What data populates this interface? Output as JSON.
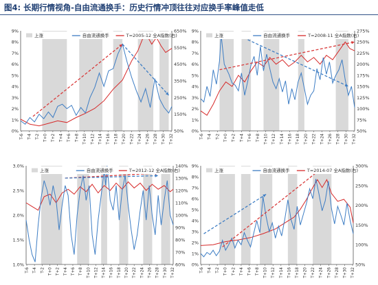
{
  "page": {
    "figure_tag": "图4:",
    "title": "长期行情视角-自由流通换手：历史行情冲顶往往对应换手率峰值走低"
  },
  "legend_common": {
    "shade_label": "上涨",
    "turnover_label": "自由流通换手"
  },
  "colors": {
    "shade": "#d9d9d9",
    "turnover": "#3d7dc4",
    "index": "#d62828",
    "trend_red": "#d93a3a",
    "trend_blue": "#3d7dc4",
    "axis": "#555555"
  },
  "chart_data": [
    {
      "type": "line",
      "index_label": "T=2005-12 全A指数(右)",
      "x_ticks": [
        "T-6",
        "T-4",
        "T-2",
        "T+0",
        "T+2",
        "T+4",
        "T+6",
        "T+8",
        "T+10",
        "T+12",
        "T+14",
        "T+16",
        "T+18",
        "T+20",
        "T+22",
        "T+24",
        "T+26",
        "T+28",
        "T+30",
        "T+32"
      ],
      "yleft": {
        "ticks": [
          "0%",
          "1%",
          "2%",
          "3%",
          "4%",
          "5%",
          "6%",
          "7%",
          "8%",
          "9%"
        ],
        "min": 0,
        "max": 9
      },
      "yright": {
        "ticks": [
          "50%",
          "150%",
          "250%",
          "350%",
          "450%",
          "550%",
          "650%"
        ],
        "min": 50,
        "max": 650
      },
      "shaded_ranges_x": [
        [
          7,
          15
        ],
        [
          19,
          26.5
        ],
        [
          30,
          33
        ],
        [
          38,
          43
        ],
        [
          45,
          48
        ]
      ],
      "turnover": [
        [
          0,
          0.9
        ],
        [
          1.5,
          0.6
        ],
        [
          3,
          1.2
        ],
        [
          4.5,
          0.8
        ],
        [
          6,
          1.5
        ],
        [
          7.5,
          1.1
        ],
        [
          9,
          1.7
        ],
        [
          10.5,
          1.2
        ],
        [
          12,
          2.2
        ],
        [
          13.5,
          2.4
        ],
        [
          15,
          2.0
        ],
        [
          16.5,
          2.3
        ],
        [
          18,
          1.4
        ],
        [
          19.5,
          2.1
        ],
        [
          21,
          1.6
        ],
        [
          22.5,
          3.0
        ],
        [
          24,
          3.9
        ],
        [
          25.5,
          5.2
        ],
        [
          27,
          4.0
        ],
        [
          28.5,
          5.4
        ],
        [
          30,
          5.6
        ],
        [
          31.5,
          6.9
        ],
        [
          33,
          7.8
        ],
        [
          34.5,
          6.2
        ],
        [
          36,
          4.8
        ],
        [
          37.5,
          3.6
        ],
        [
          39,
          2.6
        ],
        [
          40.5,
          3.8
        ],
        [
          42,
          2.1
        ],
        [
          43.5,
          4.7
        ],
        [
          45,
          2.9
        ],
        [
          46.5,
          2.1
        ],
        [
          48,
          1.6
        ],
        [
          49,
          2.2
        ]
      ],
      "index": [
        [
          0,
          120
        ],
        [
          3,
          90
        ],
        [
          6,
          80
        ],
        [
          9,
          95
        ],
        [
          12,
          110
        ],
        [
          15,
          100
        ],
        [
          18,
          130
        ],
        [
          21,
          155
        ],
        [
          24,
          185
        ],
        [
          27,
          230
        ],
        [
          30,
          300
        ],
        [
          33,
          355
        ],
        [
          36,
          470
        ],
        [
          38,
          530
        ],
        [
          39.5,
          600
        ],
        [
          41,
          620
        ],
        [
          42.5,
          570
        ],
        [
          44,
          610
        ],
        [
          45.5,
          560
        ],
        [
          47,
          520
        ],
        [
          49,
          545
        ]
      ],
      "trend_red": [
        [
          4,
          1.3
        ],
        [
          33,
          7.8
        ]
      ],
      "trend_blue": [
        [
          33,
          7.8
        ],
        [
          48,
          3.2
        ]
      ]
    },
    {
      "type": "line",
      "index_label": "T=2008-11 全A指数(右)",
      "x_ticks": [
        "T-6",
        "T-4",
        "T-2",
        "T+0",
        "T+2",
        "T+4",
        "T+6",
        "T+8",
        "T+10",
        "T+12",
        "T+14",
        "T+16",
        "T+18",
        "T+20",
        "T+22",
        "T+24",
        "T+26",
        "T+28",
        "T+30",
        "T+32"
      ],
      "yleft": {
        "ticks": [
          "0%",
          "1%",
          "2%",
          "3%",
          "4%",
          "5%",
          "6%",
          "7%",
          "8%",
          "9%"
        ],
        "min": 0,
        "max": 9
      },
      "yright": {
        "ticks": [
          "50%",
          "75%",
          "100%",
          "125%",
          "150%",
          "175%",
          "200%",
          "225%",
          "250%",
          "275%"
        ],
        "min": 50,
        "max": 275
      },
      "shaded_ranges_x": [
        [
          6,
          10.5
        ],
        [
          13,
          16
        ],
        [
          20,
          25
        ],
        [
          31,
          33
        ],
        [
          43,
          47
        ]
      ],
      "turnover": [
        [
          0,
          2.9
        ],
        [
          1,
          2.6
        ],
        [
          2,
          4.0
        ],
        [
          3,
          3.1
        ],
        [
          4,
          5.5
        ],
        [
          5,
          4.2
        ],
        [
          6,
          6.3
        ],
        [
          6.5,
          8.7
        ],
        [
          7.5,
          6.0
        ],
        [
          9,
          5.1
        ],
        [
          10,
          4.3
        ],
        [
          11,
          4.1
        ],
        [
          12,
          3.6
        ],
        [
          13,
          5.2
        ],
        [
          14,
          3.2
        ],
        [
          15,
          4.5
        ],
        [
          16,
          5.9
        ],
        [
          17,
          6.7
        ],
        [
          18,
          5.0
        ],
        [
          19,
          7.6
        ],
        [
          20,
          5.4
        ],
        [
          21,
          6.9
        ],
        [
          22,
          5.6
        ],
        [
          23,
          4.4
        ],
        [
          24,
          3.8
        ],
        [
          25,
          4.7
        ],
        [
          26,
          3.5
        ],
        [
          27,
          4.5
        ],
        [
          28,
          2.4
        ],
        [
          29,
          3.8
        ],
        [
          30,
          2.8
        ],
        [
          31,
          4.4
        ],
        [
          32,
          5.2
        ],
        [
          33,
          3.8
        ],
        [
          34,
          2.4
        ],
        [
          35,
          3.2
        ],
        [
          36,
          3.6
        ],
        [
          37,
          5.6
        ],
        [
          38,
          4.6
        ],
        [
          39,
          6.6
        ],
        [
          40,
          5.1
        ],
        [
          41,
          6.2
        ],
        [
          42,
          4.3
        ],
        [
          43,
          5.0
        ],
        [
          44,
          5.5
        ],
        [
          45,
          6.4
        ],
        [
          46,
          4.6
        ],
        [
          47,
          3.2
        ],
        [
          48,
          4.0
        ],
        [
          49,
          2.1
        ]
      ],
      "index": [
        [
          0,
          95
        ],
        [
          2,
          85
        ],
        [
          4,
          110
        ],
        [
          6,
          140
        ],
        [
          8,
          160
        ],
        [
          10,
          150
        ],
        [
          12,
          175
        ],
        [
          14,
          160
        ],
        [
          16,
          185
        ],
        [
          18,
          205
        ],
        [
          20,
          195
        ],
        [
          22,
          215
        ],
        [
          24,
          200
        ],
        [
          26,
          210
        ],
        [
          28,
          195
        ],
        [
          30,
          205
        ],
        [
          32,
          220
        ],
        [
          34,
          205
        ],
        [
          36,
          215
        ],
        [
          38,
          200
        ],
        [
          40,
          220
        ],
        [
          42,
          210
        ],
        [
          44,
          230
        ],
        [
          46,
          250
        ],
        [
          47.5,
          235
        ],
        [
          49,
          230
        ]
      ],
      "trend_red": [
        [
          6,
          5.5
        ],
        [
          49,
          8.0
        ]
      ],
      "trend_blue": [
        [
          15,
          8.2
        ],
        [
          47,
          4.0
        ]
      ]
    },
    {
      "type": "line",
      "index_label": "T=2012-12 全A指数(右)",
      "x_ticks": [
        "T-6",
        "T-4",
        "T-2",
        "T+0",
        "T+2",
        "T+4",
        "T+6",
        "T+8",
        "T+10",
        "T+12",
        "T+14",
        "T+16",
        "T+18",
        "T+20",
        "T+22",
        "T+24",
        "T+26",
        "T+28",
        "T+30",
        "T+32"
      ],
      "yleft": {
        "ticks": [
          "1.0%",
          "1.5%",
          "2.0%",
          "2.5%",
          "3.0%"
        ],
        "min": 1.0,
        "max": 3.0
      },
      "yright": {
        "ticks": [
          "60%",
          "70%",
          "80%",
          "90%",
          "100%",
          "110%",
          "120%",
          "130%",
          "140%"
        ],
        "min": 60,
        "max": 140
      },
      "shaded_ranges_x": [
        [
          5,
          12
        ],
        [
          17,
          21
        ],
        [
          25,
          27
        ],
        [
          31,
          34
        ],
        [
          39,
          42
        ],
        [
          45,
          48
        ]
      ],
      "turnover": [
        [
          0,
          1.9
        ],
        [
          1,
          1.5
        ],
        [
          2,
          1.2
        ],
        [
          3,
          1.05
        ],
        [
          4,
          1.8
        ],
        [
          5,
          2.35
        ],
        [
          6,
          2.7
        ],
        [
          7,
          2.5
        ],
        [
          8,
          2.2
        ],
        [
          9,
          2.6
        ],
        [
          10,
          2.3
        ],
        [
          11,
          1.7
        ],
        [
          12,
          2.2
        ],
        [
          13,
          2.6
        ],
        [
          14,
          2.4
        ],
        [
          15,
          1.6
        ],
        [
          16,
          1.2
        ],
        [
          17,
          2.0
        ],
        [
          18,
          2.5
        ],
        [
          19,
          2.8
        ],
        [
          20,
          2.3
        ],
        [
          21,
          2.6
        ],
        [
          22,
          1.6
        ],
        [
          23,
          1.2
        ],
        [
          24,
          1.9
        ],
        [
          25,
          2.4
        ],
        [
          26,
          2.9
        ],
        [
          26.5,
          2.6
        ],
        [
          27,
          3.0
        ],
        [
          28,
          2.3
        ],
        [
          29,
          2.1
        ],
        [
          30,
          2.6
        ],
        [
          31,
          1.9
        ],
        [
          32,
          2.5
        ],
        [
          33,
          2.8
        ],
        [
          34,
          2.2
        ],
        [
          35,
          1.7
        ],
        [
          36,
          1.3
        ],
        [
          37,
          1.6
        ],
        [
          38,
          2.1
        ],
        [
          39,
          2.5
        ],
        [
          40,
          1.9
        ],
        [
          41,
          2.6
        ],
        [
          42,
          2.0
        ],
        [
          43,
          1.6
        ],
        [
          44,
          2.4
        ],
        [
          45,
          1.8
        ],
        [
          46,
          2.3
        ],
        [
          47,
          2.7
        ],
        [
          48,
          2.0
        ],
        [
          49,
          1.8
        ]
      ],
      "index": [
        [
          0,
          110
        ],
        [
          2,
          107
        ],
        [
          4,
          104
        ],
        [
          6,
          115
        ],
        [
          8,
          117
        ],
        [
          10,
          110
        ],
        [
          12,
          118
        ],
        [
          14,
          121
        ],
        [
          16,
          117
        ],
        [
          18,
          123
        ],
        [
          20,
          119
        ],
        [
          22,
          125
        ],
        [
          24,
          118
        ],
        [
          26,
          124
        ],
        [
          28,
          120
        ],
        [
          30,
          126
        ],
        [
          32,
          121
        ],
        [
          34,
          127
        ],
        [
          36,
          122
        ],
        [
          38,
          126
        ],
        [
          40,
          120
        ],
        [
          42,
          125
        ],
        [
          44,
          121
        ],
        [
          46,
          124
        ],
        [
          48,
          119
        ],
        [
          49,
          121
        ]
      ],
      "trend_red": [
        [
          13,
          2.75
        ],
        [
          44,
          2.85
        ]
      ],
      "trend_blue": [
        [
          13,
          2.75
        ],
        [
          44,
          2.8
        ]
      ]
    },
    {
      "type": "line",
      "index_label": "T=2014-07 全A指数(右)",
      "x_ticks": [
        "T-6",
        "T-4",
        "T-2",
        "T+0",
        "T+2",
        "T+4",
        "T+6",
        "T+8",
        "T+10",
        "T+12",
        "T+14",
        "T+16",
        "T+18",
        "T+20",
        "T+22",
        "T+24",
        "T+26",
        "T+28",
        "T+30",
        "T+32"
      ],
      "yleft": {
        "ticks": [
          "0%",
          "1%",
          "2%",
          "3%",
          "4%",
          "5%",
          "6%",
          "7%",
          "8%",
          "9%"
        ],
        "min": 0,
        "max": 9
      },
      "yright": {
        "ticks": [
          "50%",
          "100%",
          "150%",
          "200%",
          "250%",
          "300%"
        ],
        "min": 50,
        "max": 300
      },
      "shaded_ranges_x": [
        [
          6,
          11
        ],
        [
          13,
          16
        ],
        [
          19,
          23
        ],
        [
          28,
          31
        ],
        [
          36,
          42
        ]
      ],
      "turnover": [
        [
          0,
          1.0
        ],
        [
          1,
          0.7
        ],
        [
          2,
          1.1
        ],
        [
          3,
          0.9
        ],
        [
          4,
          1.3
        ],
        [
          5,
          0.8
        ],
        [
          6,
          1.2
        ],
        [
          7,
          2.2
        ],
        [
          8,
          1.3
        ],
        [
          9,
          1.8
        ],
        [
          10,
          2.4
        ],
        [
          11,
          1.5
        ],
        [
          12,
          2.2
        ],
        [
          13,
          1.8
        ],
        [
          14,
          2.9
        ],
        [
          15,
          2.2
        ],
        [
          16,
          1.6
        ],
        [
          17,
          2.8
        ],
        [
          18,
          4.0
        ],
        [
          19,
          2.9
        ],
        [
          20,
          6.2
        ],
        [
          21,
          4.4
        ],
        [
          22,
          3.0
        ],
        [
          23,
          3.8
        ],
        [
          24,
          2.4
        ],
        [
          25,
          3.5
        ],
        [
          26,
          2.6
        ],
        [
          27,
          4.1
        ],
        [
          28,
          5.9
        ],
        [
          29,
          4.1
        ],
        [
          30,
          3.2
        ],
        [
          31,
          5.3
        ],
        [
          32,
          3.6
        ],
        [
          33,
          4.6
        ],
        [
          34,
          5.6
        ],
        [
          35,
          6.9
        ],
        [
          36,
          6.0
        ],
        [
          37,
          7.8
        ],
        [
          38,
          6.4
        ],
        [
          39,
          4.9
        ],
        [
          40,
          5.8
        ],
        [
          41,
          7.6
        ],
        [
          42,
          5.1
        ],
        [
          43,
          3.7
        ],
        [
          44,
          5.3
        ],
        [
          45,
          4.5
        ],
        [
          46,
          3.6
        ],
        [
          47,
          5.6
        ],
        [
          48,
          4.0
        ],
        [
          49,
          2.8
        ]
      ],
      "index": [
        [
          0,
          98
        ],
        [
          4,
          100
        ],
        [
          8,
          108
        ],
        [
          12,
          112
        ],
        [
          16,
          118
        ],
        [
          20,
          128
        ],
        [
          24,
          140
        ],
        [
          28,
          160
        ],
        [
          30,
          170
        ],
        [
          32,
          190
        ],
        [
          34,
          215
        ],
        [
          36,
          245
        ],
        [
          37.5,
          265
        ],
        [
          39,
          245
        ],
        [
          40.5,
          265
        ],
        [
          42,
          230
        ],
        [
          44,
          210
        ],
        [
          46,
          215
        ],
        [
          48,
          195
        ],
        [
          49,
          155
        ]
      ],
      "trend_red": [
        [
          7,
          1.6
        ],
        [
          39,
          8.8
        ]
      ],
      "trend_blue": [
        [
          1,
          2.8
        ],
        [
          21,
          6.4
        ]
      ]
    }
  ]
}
